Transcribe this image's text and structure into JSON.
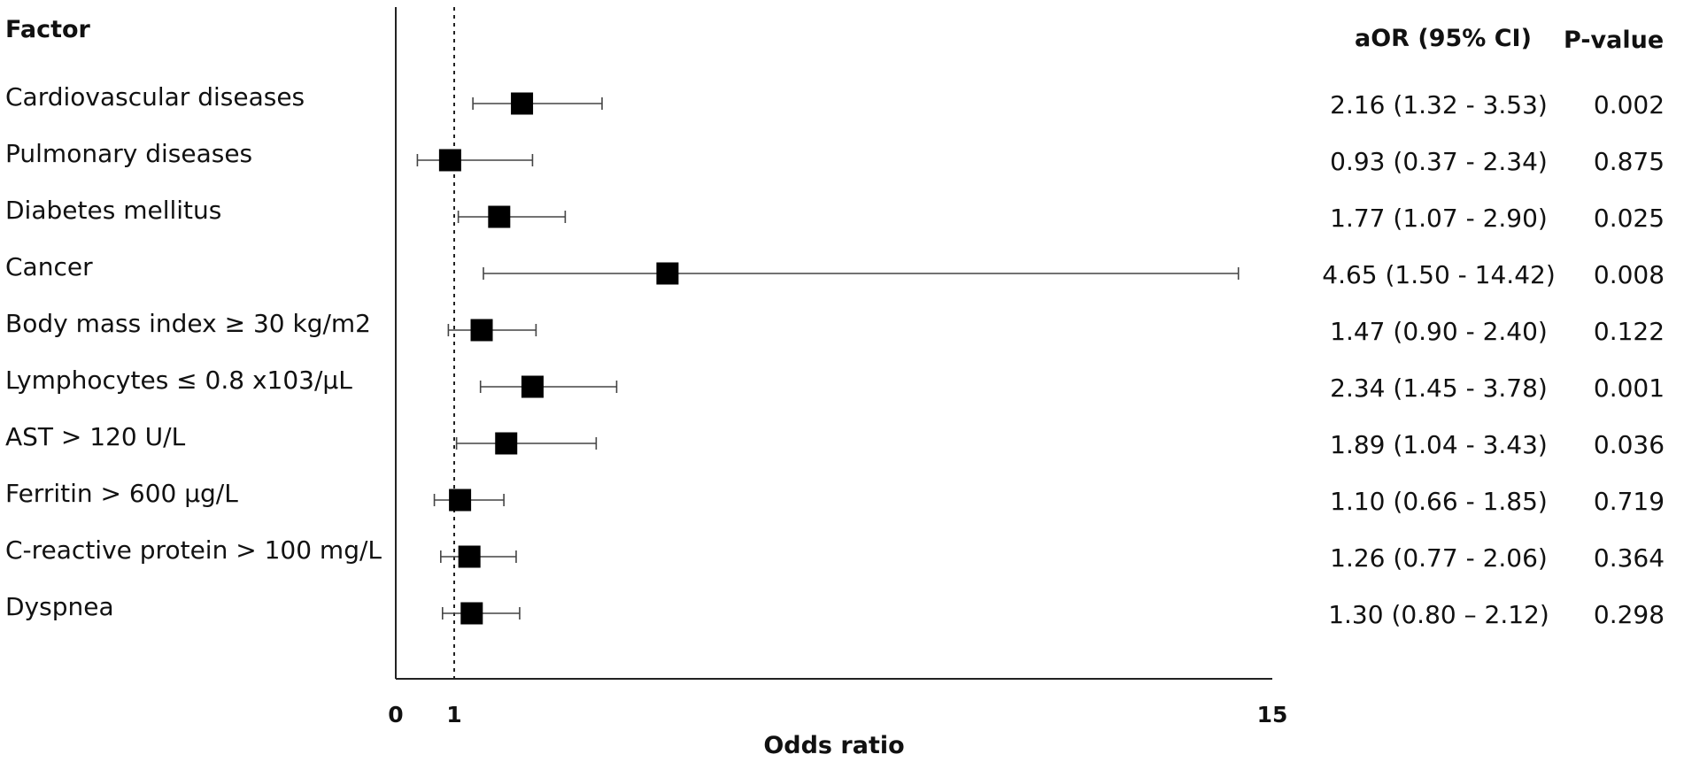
{
  "headers": {
    "factor": "Factor",
    "aor": "aOR (95% CI)",
    "pvalue": "P-value"
  },
  "chart_data": {
    "type": "forest",
    "xlabel": "Odds ratio",
    "xlim": [
      0,
      15
    ],
    "xticks": [
      "0",
      "1",
      "15"
    ],
    "reference_line": 1,
    "rows": [
      {
        "factor": "Cardiovascular diseases",
        "or": 2.16,
        "ci": [
          1.32,
          3.53
        ],
        "aor_text": "2.16 (1.32 - 3.53)",
        "p": "0.002"
      },
      {
        "factor": "Pulmonary  diseases",
        "or": 0.93,
        "ci": [
          0.37,
          2.34
        ],
        "aor_text": "0.93 (0.37 - 2.34)",
        "p": "0.875"
      },
      {
        "factor": "Diabetes mellitus",
        "or": 1.77,
        "ci": [
          1.07,
          2.9
        ],
        "aor_text": "1.77 (1.07 - 2.90)",
        "p": "0.025"
      },
      {
        "factor": "Cancer",
        "or": 4.65,
        "ci": [
          1.5,
          14.42
        ],
        "aor_text": "4.65 (1.50 - 14.42)",
        "p": "0.008"
      },
      {
        "factor": "Body mass index ≥ 30 kg/m2",
        "or": 1.47,
        "ci": [
          0.9,
          2.4
        ],
        "aor_text": "1.47 (0.90 - 2.40)",
        "p": "0.122"
      },
      {
        "factor": "Lymphocytes ≤ 0.8 x103/μL",
        "or": 2.34,
        "ci": [
          1.45,
          3.78
        ],
        "aor_text": "2.34 (1.45 - 3.78)",
        "p": "0.001"
      },
      {
        "factor": "AST > 120 U/L",
        "or": 1.89,
        "ci": [
          1.04,
          3.43
        ],
        "aor_text": "1.89 (1.04 - 3.43)",
        "p": "0.036"
      },
      {
        "factor": "Ferritin > 600 μg/L",
        "or": 1.1,
        "ci": [
          0.66,
          1.85
        ],
        "aor_text": "1.10 (0.66 - 1.85)",
        "p": "0.719"
      },
      {
        "factor": "C-reactive protein > 100 mg/L",
        "or": 1.26,
        "ci": [
          0.77,
          2.06
        ],
        "aor_text": "1.26 (0.77 - 2.06)",
        "p": "0.364"
      },
      {
        "factor": "Dyspnea",
        "or": 1.3,
        "ci": [
          0.8,
          2.12
        ],
        "aor_text": "1.30 (0.80 – 2.12)",
        "p": "0.298"
      }
    ]
  }
}
